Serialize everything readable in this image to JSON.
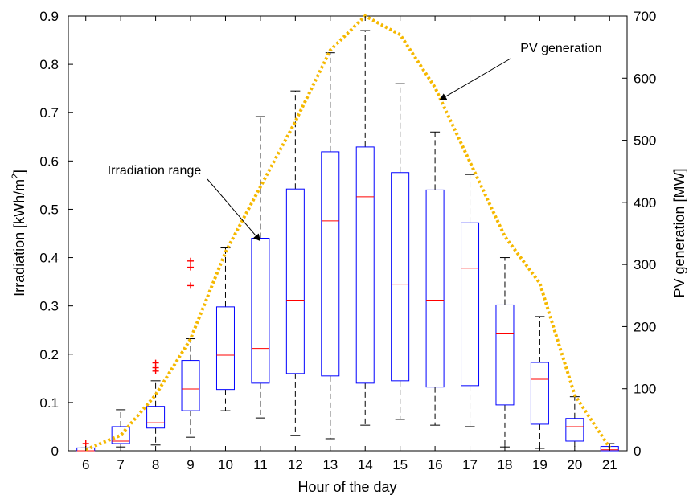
{
  "chart_data": {
    "type": "boxplot_with_line",
    "xlabel": "Hour of the day",
    "ylabel_left": "Irradiation [kWh/m",
    "ylabel_left_sup": "2",
    "ylabel_left_end": "]",
    "ylabel_right": "PV generation [MW]",
    "x_categories": [
      "6",
      "7",
      "8",
      "9",
      "10",
      "11",
      "12",
      "13",
      "14",
      "15",
      "16",
      "17",
      "18",
      "19",
      "20",
      "21"
    ],
    "x_range": [
      5.5,
      21.5
    ],
    "y_left_range": [
      0,
      0.9
    ],
    "y_left_ticks": [
      "0",
      "0.1",
      "0.2",
      "0.3",
      "0.4",
      "0.5",
      "0.6",
      "0.7",
      "0.8",
      "0.9"
    ],
    "y_right_range": [
      0,
      700
    ],
    "y_right_ticks": [
      "0",
      "100",
      "200",
      "300",
      "400",
      "500",
      "600",
      "700"
    ],
    "grid": false,
    "boxes": [
      {
        "hour": 6,
        "wlo": 0.0,
        "q1": 0.0,
        "median": 0.0,
        "q3": 0.006,
        "whi": 0.006,
        "outliers": [
          0.015
        ]
      },
      {
        "hour": 7,
        "wlo": 0.008,
        "q1": 0.015,
        "median": 0.02,
        "q3": 0.05,
        "whi": 0.085,
        "outliers": []
      },
      {
        "hour": 8,
        "wlo": 0.012,
        "q1": 0.047,
        "median": 0.058,
        "q3": 0.092,
        "whi": 0.145,
        "outliers": [
          0.165,
          0.172,
          0.182
        ]
      },
      {
        "hour": 9,
        "wlo": 0.028,
        "q1": 0.083,
        "median": 0.128,
        "q3": 0.187,
        "whi": 0.232,
        "outliers": [
          0.342,
          0.38,
          0.393
        ]
      },
      {
        "hour": 10,
        "wlo": 0.083,
        "q1": 0.127,
        "median": 0.198,
        "q3": 0.298,
        "whi": 0.42,
        "outliers": []
      },
      {
        "hour": 11,
        "wlo": 0.068,
        "q1": 0.14,
        "median": 0.212,
        "q3": 0.44,
        "whi": 0.692,
        "outliers": []
      },
      {
        "hour": 12,
        "wlo": 0.032,
        "q1": 0.16,
        "median": 0.312,
        "q3": 0.542,
        "whi": 0.745,
        "outliers": []
      },
      {
        "hour": 13,
        "wlo": 0.025,
        "q1": 0.155,
        "median": 0.476,
        "q3": 0.619,
        "whi": 0.824,
        "outliers": []
      },
      {
        "hour": 14,
        "wlo": 0.053,
        "q1": 0.14,
        "median": 0.526,
        "q3": 0.629,
        "whi": 0.87,
        "outliers": []
      },
      {
        "hour": 15,
        "wlo": 0.065,
        "q1": 0.145,
        "median": 0.345,
        "q3": 0.576,
        "whi": 0.76,
        "outliers": []
      },
      {
        "hour": 16,
        "wlo": 0.053,
        "q1": 0.132,
        "median": 0.312,
        "q3": 0.54,
        "whi": 0.66,
        "outliers": []
      },
      {
        "hour": 17,
        "wlo": 0.05,
        "q1": 0.135,
        "median": 0.378,
        "q3": 0.472,
        "whi": 0.572,
        "outliers": []
      },
      {
        "hour": 18,
        "wlo": 0.008,
        "q1": 0.095,
        "median": 0.242,
        "q3": 0.302,
        "whi": 0.4,
        "outliers": []
      },
      {
        "hour": 19,
        "wlo": 0.005,
        "q1": 0.055,
        "median": 0.148,
        "q3": 0.183,
        "whi": 0.278,
        "outliers": []
      },
      {
        "hour": 20,
        "wlo": 0.0,
        "q1": 0.02,
        "median": 0.05,
        "q3": 0.067,
        "whi": 0.112,
        "outliers": []
      },
      {
        "hour": 21,
        "wlo": 0.0,
        "q1": 0.0,
        "median": 0.002,
        "q3": 0.009,
        "whi": 0.015,
        "outliers": []
      }
    ],
    "pv_line": {
      "name": "PV generation",
      "color": "#F5B800",
      "x": [
        6,
        7,
        8,
        9,
        10,
        11,
        12,
        13,
        14,
        15,
        16,
        17,
        18,
        19,
        20,
        21
      ],
      "values": [
        2,
        25,
        90,
        180,
        320,
        425,
        530,
        645,
        700,
        670,
        585,
        465,
        345,
        270,
        90,
        5
      ]
    },
    "annotations": [
      {
        "text": "PV generation",
        "points_to": {
          "x": 16.0,
          "y_right": 565
        }
      },
      {
        "text": "Irradiation range",
        "points_to": {
          "x": 10.9,
          "y_left": 0.435
        }
      }
    ],
    "colors": {
      "box": "#0000FF",
      "median": "#FF0000",
      "outlier": "#FF0000",
      "whisker": "#000000",
      "line": "#F5B800"
    }
  }
}
